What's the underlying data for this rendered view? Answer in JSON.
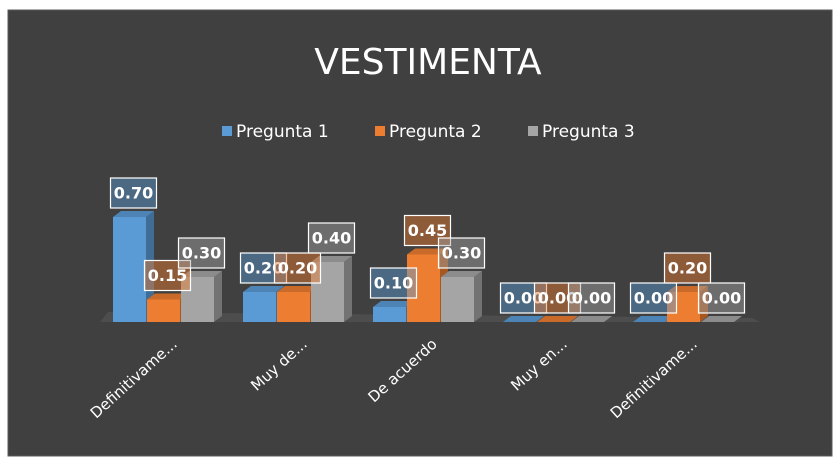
{
  "chart_data": {
    "type": "bar3d",
    "title": "VESTIMENTA",
    "categories": [
      "Definitivame...",
      "Muy de...",
      "De acuerdo",
      "Muy en...",
      "Definitivame..."
    ],
    "series": [
      {
        "name": "Pregunta 1",
        "color": "#5b9bd5",
        "values": [
          0.7,
          0.2,
          0.1,
          0,
          0
        ],
        "value_labels": [
          "0.70",
          "0.20",
          "0.10",
          "0.00",
          "0.00"
        ]
      },
      {
        "name": "Pregunta 2",
        "color": "#ed7d31",
        "values": [
          0.15,
          0.2,
          0.45,
          0,
          0.2
        ],
        "value_labels": [
          "0.15",
          "0.20",
          "0.45",
          "0.00",
          "0.20"
        ]
      },
      {
        "name": "Pregunta 3",
        "color": "#a5a5a5",
        "values": [
          0.3,
          0.4,
          0.3,
          0,
          0
        ],
        "value_labels": [
          "0.30",
          "0.40",
          "0.30",
          "0.00",
          "0.00"
        ]
      }
    ],
    "legend": "top"
  }
}
